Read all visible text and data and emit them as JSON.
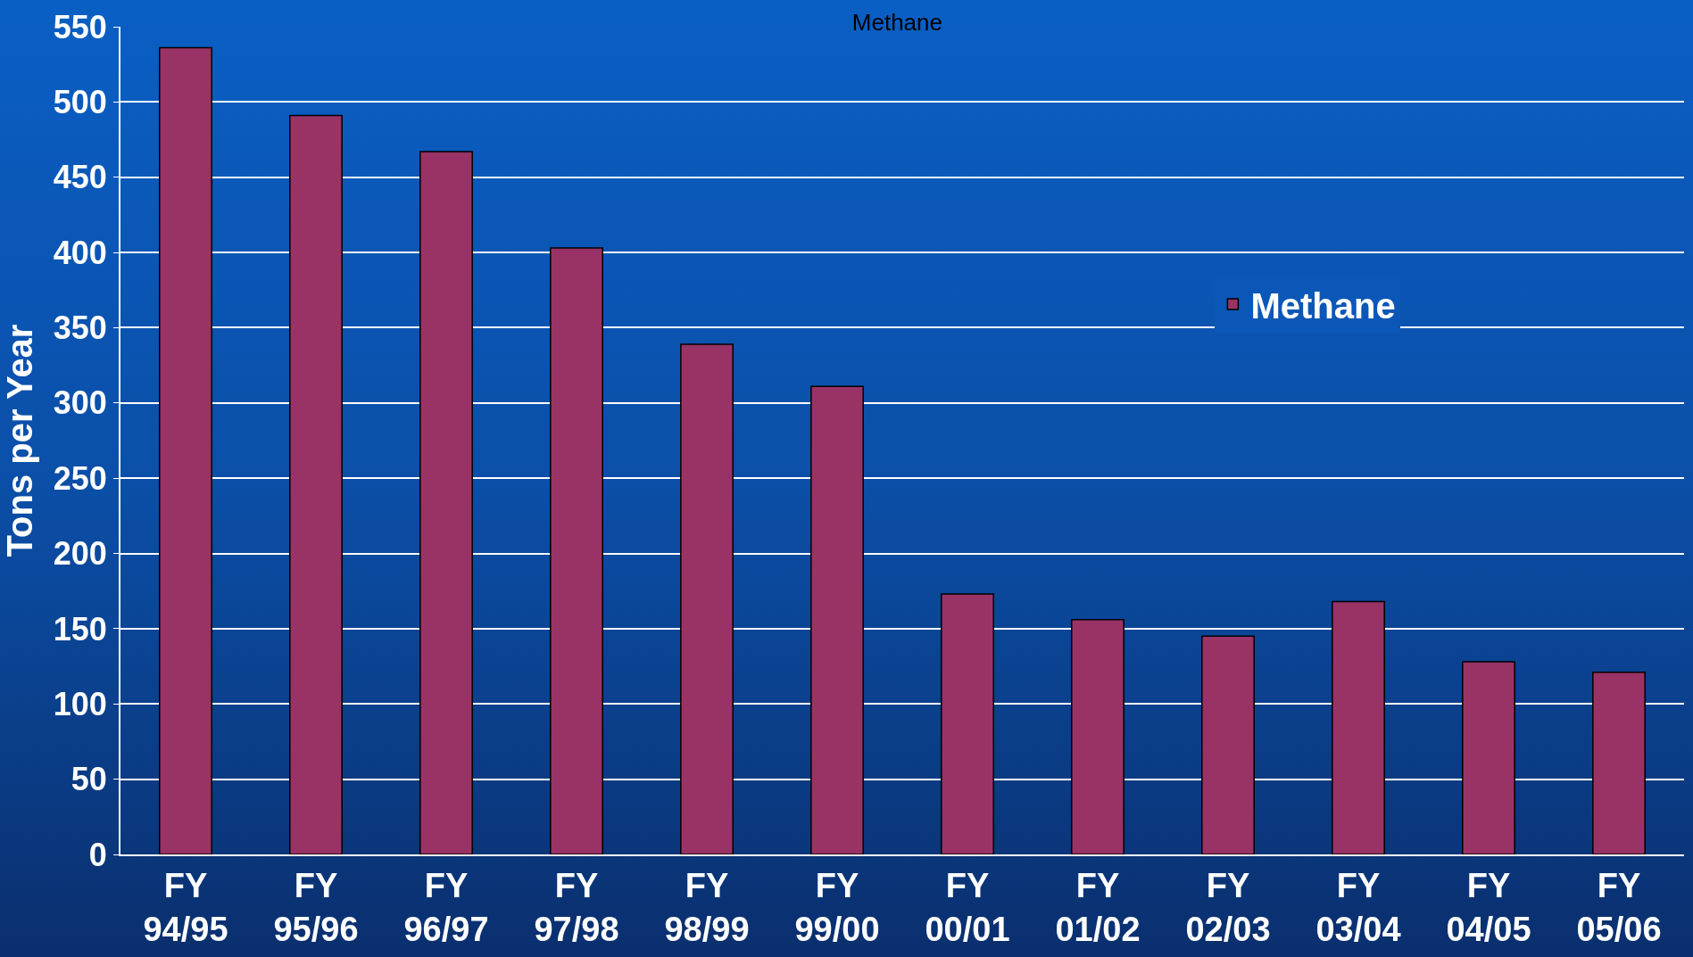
{
  "chart_data": {
    "type": "bar",
    "title": "Methane",
    "ylabel": "Tons per Year",
    "categories": [
      "FY 94/95",
      "FY 95/96",
      "FY 96/97",
      "FY 97/98",
      "FY 98/99",
      "FY 99/00",
      "FY 00/01",
      "FY 01/02",
      "FY 02/03",
      "FY 03/04",
      "FY 04/05",
      "FY 05/06"
    ],
    "series": [
      {
        "name": "Methane",
        "color": "#993366",
        "values": [
          536,
          491,
          467,
          403,
          339,
          311,
          173,
          156,
          145,
          168,
          128,
          121
        ]
      }
    ],
    "ylim": [
      0,
      550
    ],
    "yticks": [
      0,
      50,
      100,
      150,
      200,
      250,
      300,
      350,
      400,
      450,
      500,
      550
    ],
    "grid": "y",
    "legend": "top right"
  }
}
